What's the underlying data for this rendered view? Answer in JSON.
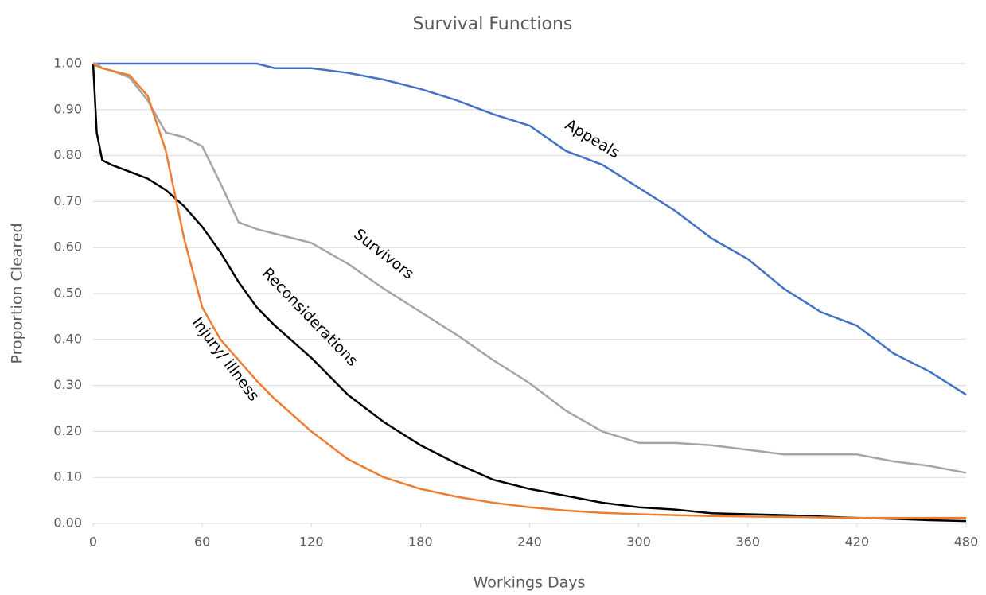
{
  "chart_data": {
    "type": "line",
    "title": "Survival Functions",
    "x_label": "Workings Days",
    "y_label": "Proportion Cleared",
    "x": [
      0,
      2,
      5,
      10,
      20,
      30,
      40,
      50,
      60,
      70,
      80,
      90,
      100,
      120,
      140,
      160,
      180,
      200,
      220,
      240,
      260,
      280,
      300,
      320,
      340,
      360,
      380,
      400,
      420,
      440,
      460,
      480
    ],
    "series": [
      {
        "name": "Appeals",
        "color": "#4472c4",
        "values": [
          1,
          1,
          1,
          1,
          1,
          1,
          1,
          1,
          1,
          1,
          1,
          1,
          0.99,
          0.99,
          0.98,
          0.965,
          0.945,
          0.92,
          0.89,
          0.865,
          0.81,
          0.78,
          0.73,
          0.68,
          0.62,
          0.575,
          0.51,
          0.46,
          0.43,
          0.37,
          0.33,
          0.28
        ]
      },
      {
        "name": "Survivors",
        "color": "#a5a5a5",
        "values": [
          1,
          1,
          0.99,
          0.985,
          0.97,
          0.92,
          0.85,
          0.84,
          0.82,
          0.74,
          0.655,
          0.64,
          0.63,
          0.61,
          0.565,
          0.51,
          0.46,
          0.41,
          0.355,
          0.305,
          0.245,
          0.2,
          0.175,
          0.175,
          0.17,
          0.16,
          0.15,
          0.15,
          0.15,
          0.135,
          0.125,
          0.11
        ]
      },
      {
        "name": "Reconsiderations",
        "color": "#000000",
        "values": [
          1,
          0.85,
          0.79,
          0.78,
          0.765,
          0.75,
          0.725,
          0.69,
          0.645,
          0.59,
          0.525,
          0.47,
          0.43,
          0.36,
          0.28,
          0.22,
          0.17,
          0.13,
          0.095,
          0.075,
          0.06,
          0.045,
          0.035,
          0.03,
          0.022,
          0.02,
          0.018,
          0.015,
          0.012,
          0.01,
          0.007,
          0.005
        ]
      },
      {
        "name": "Injury/ illness",
        "color": "#ed7d31",
        "values": [
          1,
          0.995,
          0.99,
          0.985,
          0.975,
          0.93,
          0.81,
          0.62,
          0.47,
          0.4,
          0.355,
          0.31,
          0.27,
          0.2,
          0.14,
          0.1,
          0.075,
          0.058,
          0.045,
          0.035,
          0.028,
          0.023,
          0.02,
          0.018,
          0.016,
          0.015,
          0.014,
          0.013,
          0.012,
          0.012,
          0.012,
          0.012
        ]
      }
    ],
    "xlim": [
      0,
      480
    ],
    "xticks": [
      0,
      60,
      120,
      180,
      240,
      300,
      360,
      420,
      480
    ],
    "ylim": [
      0,
      1
    ],
    "yticks": [
      {
        "value": 0,
        "label": "0.00"
      },
      {
        "value": 0.1,
        "label": "0.10"
      },
      {
        "value": 0.2,
        "label": "0.20"
      },
      {
        "value": 0.3,
        "label": "0.30"
      },
      {
        "value": 0.4,
        "label": "0.40"
      },
      {
        "value": 0.5,
        "label": "0.50"
      },
      {
        "value": 0.6,
        "label": "0.60"
      },
      {
        "value": 0.7,
        "label": "0.70"
      },
      {
        "value": 0.8,
        "label": "0.80"
      },
      {
        "value": 0.9,
        "label": "0.90"
      },
      {
        "value": 1,
        "label": "1.00"
      }
    ],
    "grid": true,
    "legend": "inline"
  }
}
